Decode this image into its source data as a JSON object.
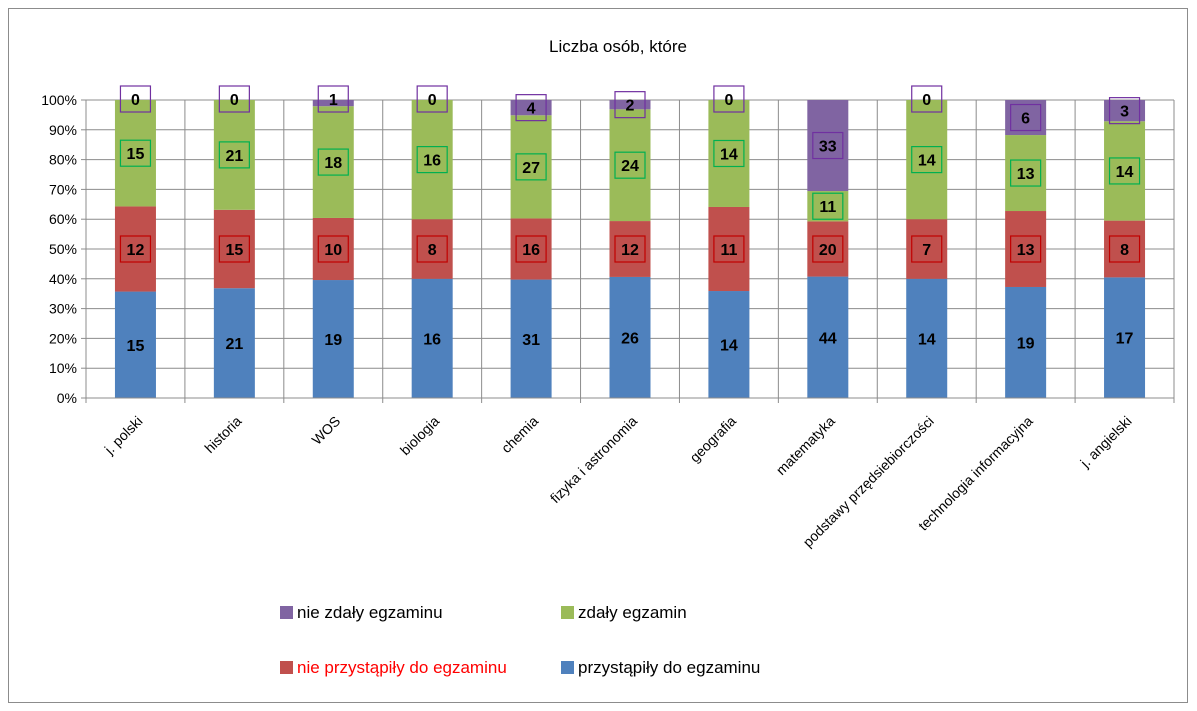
{
  "chart_data": {
    "type": "bar",
    "stacked": "percent",
    "title": "Liczba osób, które",
    "categories": [
      "j. polski",
      "historia",
      "WOS",
      "biologia",
      "chemia",
      "fizyka i astronomia",
      "geografia",
      "matematyka",
      "podstawy przędsiebiorczości",
      "technologia informacyjna",
      "j. angielski"
    ],
    "yticks": [
      "0%",
      "10%",
      "20%",
      "30%",
      "40%",
      "50%",
      "60%",
      "70%",
      "80%",
      "90%",
      "100%"
    ],
    "ylim": [
      0,
      100
    ],
    "grid": true,
    "legend_position": "bottom",
    "series": [
      {
        "name": "przystąpiły do egzaminu",
        "color": "#4f81bd",
        "values": [
          15,
          21,
          19,
          16,
          31,
          26,
          14,
          44,
          14,
          19,
          17
        ]
      },
      {
        "name": "nie przystąpiły do egzaminu",
        "color": "#c0504d",
        "label_color": "#ff0000",
        "values": [
          12,
          15,
          10,
          8,
          16,
          12,
          11,
          20,
          7,
          13,
          8
        ]
      },
      {
        "name": "zdały egzamin",
        "color": "#9bbb59",
        "values": [
          15,
          21,
          18,
          16,
          27,
          24,
          14,
          11,
          14,
          13,
          14
        ]
      },
      {
        "name": "nie zdały egzaminu",
        "color": "#8064a2",
        "values": [
          0,
          0,
          1,
          0,
          4,
          2,
          0,
          33,
          0,
          6,
          3
        ]
      }
    ],
    "legend_order": [
      3,
      2,
      1,
      0
    ]
  }
}
